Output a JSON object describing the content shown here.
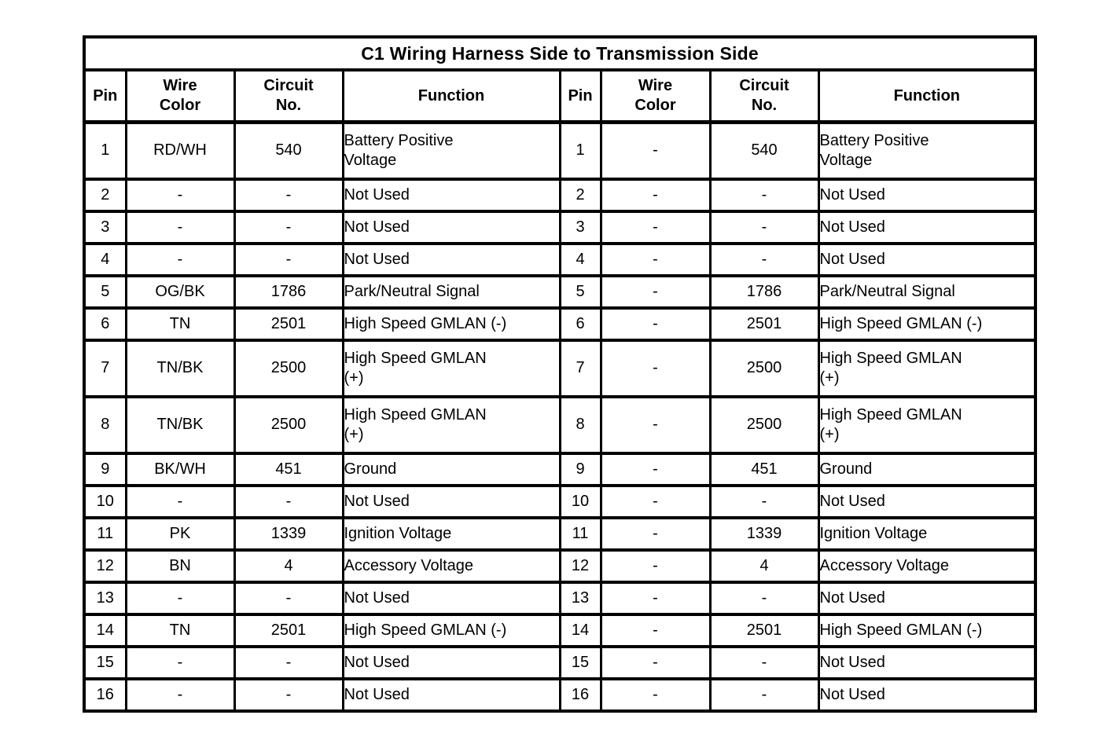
{
  "table": {
    "title": "C1 Wiring Harness Side to Transmission Side",
    "headers": {
      "pin": "Pin",
      "wire_color": "Wire\nColor",
      "circuit_no": "Circuit\nNo.",
      "function": "Function"
    }
  },
  "rows": [
    {
      "pin": "1",
      "left": {
        "wire_color": "RD/WH",
        "circuit_no": "540",
        "function": "Battery Positive\nVoltage"
      },
      "right": {
        "wire_color": "-",
        "circuit_no": "540",
        "function": "Battery Positive\nVoltage"
      }
    },
    {
      "pin": "2",
      "left": {
        "wire_color": "-",
        "circuit_no": "-",
        "function": "Not Used"
      },
      "right": {
        "wire_color": "-",
        "circuit_no": "-",
        "function": "Not Used"
      }
    },
    {
      "pin": "3",
      "left": {
        "wire_color": "-",
        "circuit_no": "-",
        "function": "Not Used"
      },
      "right": {
        "wire_color": "-",
        "circuit_no": "-",
        "function": "Not Used"
      }
    },
    {
      "pin": "4",
      "left": {
        "wire_color": "-",
        "circuit_no": "-",
        "function": "Not Used"
      },
      "right": {
        "wire_color": "-",
        "circuit_no": "-",
        "function": "Not Used"
      }
    },
    {
      "pin": "5",
      "left": {
        "wire_color": "OG/BK",
        "circuit_no": "1786",
        "function": "Park/Neutral Signal"
      },
      "right": {
        "wire_color": "-",
        "circuit_no": "1786",
        "function": "Park/Neutral Signal"
      }
    },
    {
      "pin": "6",
      "left": {
        "wire_color": "TN",
        "circuit_no": "2501",
        "function": "High Speed GMLAN (-)"
      },
      "right": {
        "wire_color": "-",
        "circuit_no": "2501",
        "function": "High Speed GMLAN (-)"
      }
    },
    {
      "pin": "7",
      "left": {
        "wire_color": "TN/BK",
        "circuit_no": "2500",
        "function": "High Speed GMLAN\n(+)"
      },
      "right": {
        "wire_color": "-",
        "circuit_no": "2500",
        "function": "High Speed GMLAN\n(+)"
      }
    },
    {
      "pin": "8",
      "left": {
        "wire_color": "TN/BK",
        "circuit_no": "2500",
        "function": "High Speed GMLAN\n(+)"
      },
      "right": {
        "wire_color": "-",
        "circuit_no": "2500",
        "function": "High Speed GMLAN\n(+)"
      }
    },
    {
      "pin": "9",
      "left": {
        "wire_color": "BK/WH",
        "circuit_no": "451",
        "function": "Ground"
      },
      "right": {
        "wire_color": "-",
        "circuit_no": "451",
        "function": "Ground"
      }
    },
    {
      "pin": "10",
      "left": {
        "wire_color": "-",
        "circuit_no": "-",
        "function": "Not Used"
      },
      "right": {
        "wire_color": "-",
        "circuit_no": "-",
        "function": "Not Used"
      }
    },
    {
      "pin": "11",
      "left": {
        "wire_color": "PK",
        "circuit_no": "1339",
        "function": "Ignition Voltage"
      },
      "right": {
        "wire_color": "-",
        "circuit_no": "1339",
        "function": "Ignition Voltage"
      }
    },
    {
      "pin": "12",
      "left": {
        "wire_color": "BN",
        "circuit_no": "4",
        "function": "Accessory Voltage"
      },
      "right": {
        "wire_color": "-",
        "circuit_no": "4",
        "function": "Accessory Voltage"
      }
    },
    {
      "pin": "13",
      "left": {
        "wire_color": "-",
        "circuit_no": "-",
        "function": "Not Used"
      },
      "right": {
        "wire_color": "-",
        "circuit_no": "-",
        "function": "Not Used"
      }
    },
    {
      "pin": "14",
      "left": {
        "wire_color": "TN",
        "circuit_no": "2501",
        "function": "High Speed GMLAN (-)"
      },
      "right": {
        "wire_color": "-",
        "circuit_no": "2501",
        "function": "High Speed GMLAN (-)"
      }
    },
    {
      "pin": "15",
      "left": {
        "wire_color": "-",
        "circuit_no": "-",
        "function": "Not Used"
      },
      "right": {
        "wire_color": "-",
        "circuit_no": "-",
        "function": "Not Used"
      }
    },
    {
      "pin": "16",
      "left": {
        "wire_color": "-",
        "circuit_no": "-",
        "function": "Not Used"
      },
      "right": {
        "wire_color": "-",
        "circuit_no": "-",
        "function": "Not Used"
      }
    }
  ],
  "colors": {
    "ink": "#000000",
    "paper": "#ffffff"
  }
}
